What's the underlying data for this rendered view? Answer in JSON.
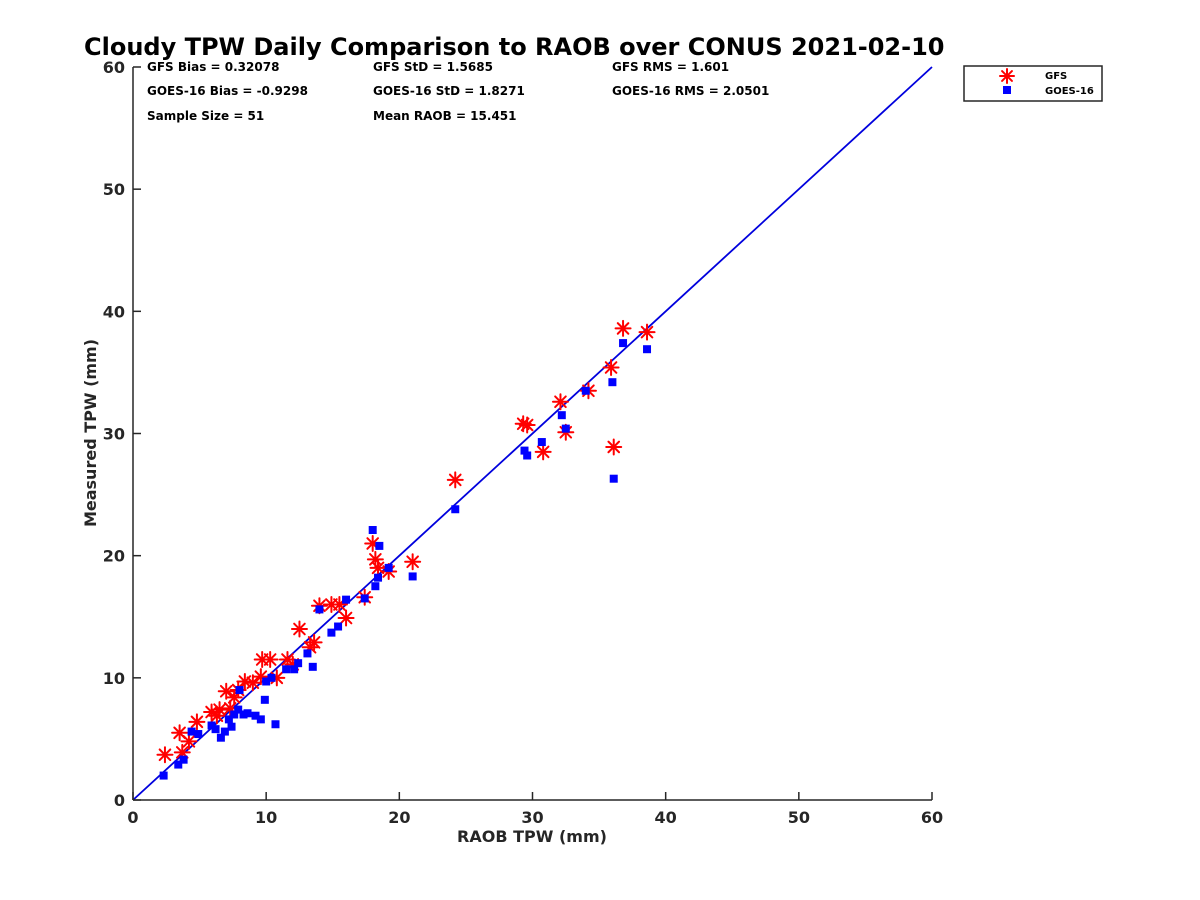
{
  "chart_data": {
    "type": "scatter",
    "title": "Cloudy TPW Daily Comparison to RAOB over CONUS 2021-02-10",
    "xlabel": "RAOB TPW (mm)",
    "ylabel": "Measured TPW (mm)",
    "xlim": [
      0,
      60
    ],
    "ylim": [
      0,
      60
    ],
    "xticks": [
      "0",
      "10",
      "20",
      "30",
      "40",
      "50",
      "60"
    ],
    "yticks": [
      "0",
      "10",
      "20",
      "30",
      "40",
      "50",
      "60"
    ],
    "grid": false,
    "legend_position": "top-right",
    "one_to_one_line": {
      "from": [
        0,
        0
      ],
      "to": [
        60,
        60
      ],
      "color": "#0000dd"
    },
    "stats": [
      [
        "GFS Bias = 0.32078",
        "GFS StD = 1.5685",
        "GFS RMS = 1.601"
      ],
      [
        "GOES-16 Bias = -0.9298",
        "GOES-16 StD = 1.8271",
        "GOES-16 RMS = 2.0501"
      ],
      [
        "Sample Size = 51",
        "Mean RAOB = 15.451",
        ""
      ]
    ],
    "series": [
      {
        "name": "GFS",
        "marker": "asterisk",
        "color": "#ff0000",
        "points": [
          [
            2.4,
            3.7
          ],
          [
            3.5,
            5.5
          ],
          [
            3.7,
            3.9
          ],
          [
            4.2,
            4.8
          ],
          [
            4.8,
            6.4
          ],
          [
            5.9,
            7.2
          ],
          [
            6.3,
            6.9
          ],
          [
            6.5,
            7.4
          ],
          [
            7.0,
            8.9
          ],
          [
            7.3,
            7.5
          ],
          [
            7.6,
            8.4
          ],
          [
            7.9,
            9.0
          ],
          [
            8.4,
            9.7
          ],
          [
            9.0,
            9.6
          ],
          [
            9.6,
            10.1
          ],
          [
            9.7,
            11.5
          ],
          [
            10.3,
            11.5
          ],
          [
            10.8,
            10.0
          ],
          [
            11.6,
            11.5
          ],
          [
            12.0,
            11.1
          ],
          [
            12.5,
            14.0
          ],
          [
            13.3,
            12.5
          ],
          [
            13.6,
            12.9
          ],
          [
            14.0,
            15.9
          ],
          [
            14.9,
            16.0
          ],
          [
            15.5,
            16.0
          ],
          [
            16.0,
            14.9
          ],
          [
            17.4,
            16.6
          ],
          [
            18.0,
            21.0
          ],
          [
            18.2,
            19.7
          ],
          [
            18.4,
            19.0
          ],
          [
            19.2,
            18.7
          ],
          [
            21.0,
            19.5
          ],
          [
            24.2,
            26.2
          ],
          [
            29.3,
            30.8
          ],
          [
            29.6,
            30.7
          ],
          [
            30.8,
            28.5
          ],
          [
            32.1,
            32.6
          ],
          [
            32.5,
            30.1
          ],
          [
            34.2,
            33.5
          ],
          [
            35.9,
            35.4
          ],
          [
            36.1,
            28.9
          ],
          [
            36.8,
            38.6
          ],
          [
            38.6,
            38.3
          ]
        ]
      },
      {
        "name": "GOES-16",
        "marker": "square",
        "color": "#0000ff",
        "points": [
          [
            2.3,
            2.0
          ],
          [
            3.4,
            2.9
          ],
          [
            3.8,
            3.3
          ],
          [
            4.4,
            5.6
          ],
          [
            4.9,
            5.4
          ],
          [
            5.9,
            6.1
          ],
          [
            6.2,
            5.8
          ],
          [
            6.6,
            5.1
          ],
          [
            6.9,
            5.6
          ],
          [
            7.2,
            6.6
          ],
          [
            7.4,
            6.0
          ],
          [
            7.6,
            7.0
          ],
          [
            7.9,
            7.4
          ],
          [
            8.0,
            9.0
          ],
          [
            8.3,
            7.0
          ],
          [
            8.6,
            7.1
          ],
          [
            9.2,
            6.9
          ],
          [
            9.6,
            6.6
          ],
          [
            9.9,
            8.2
          ],
          [
            10.0,
            9.7
          ],
          [
            10.4,
            10.0
          ],
          [
            10.7,
            6.2
          ],
          [
            11.5,
            10.7
          ],
          [
            12.1,
            10.7
          ],
          [
            12.4,
            11.2
          ],
          [
            13.1,
            12.0
          ],
          [
            13.5,
            10.9
          ],
          [
            14.0,
            15.6
          ],
          [
            14.9,
            13.7
          ],
          [
            15.4,
            14.2
          ],
          [
            16.0,
            16.4
          ],
          [
            17.4,
            16.5
          ],
          [
            18.0,
            22.1
          ],
          [
            18.2,
            17.5
          ],
          [
            18.4,
            18.2
          ],
          [
            18.5,
            20.8
          ],
          [
            19.2,
            19.0
          ],
          [
            21.0,
            18.3
          ],
          [
            24.2,
            23.8
          ],
          [
            29.4,
            28.6
          ],
          [
            29.6,
            28.2
          ],
          [
            30.7,
            29.3
          ],
          [
            32.2,
            31.5
          ],
          [
            32.5,
            30.4
          ],
          [
            34.0,
            33.5
          ],
          [
            36.0,
            34.2
          ],
          [
            36.1,
            26.3
          ],
          [
            36.8,
            37.4
          ],
          [
            38.6,
            36.9
          ]
        ]
      }
    ]
  }
}
